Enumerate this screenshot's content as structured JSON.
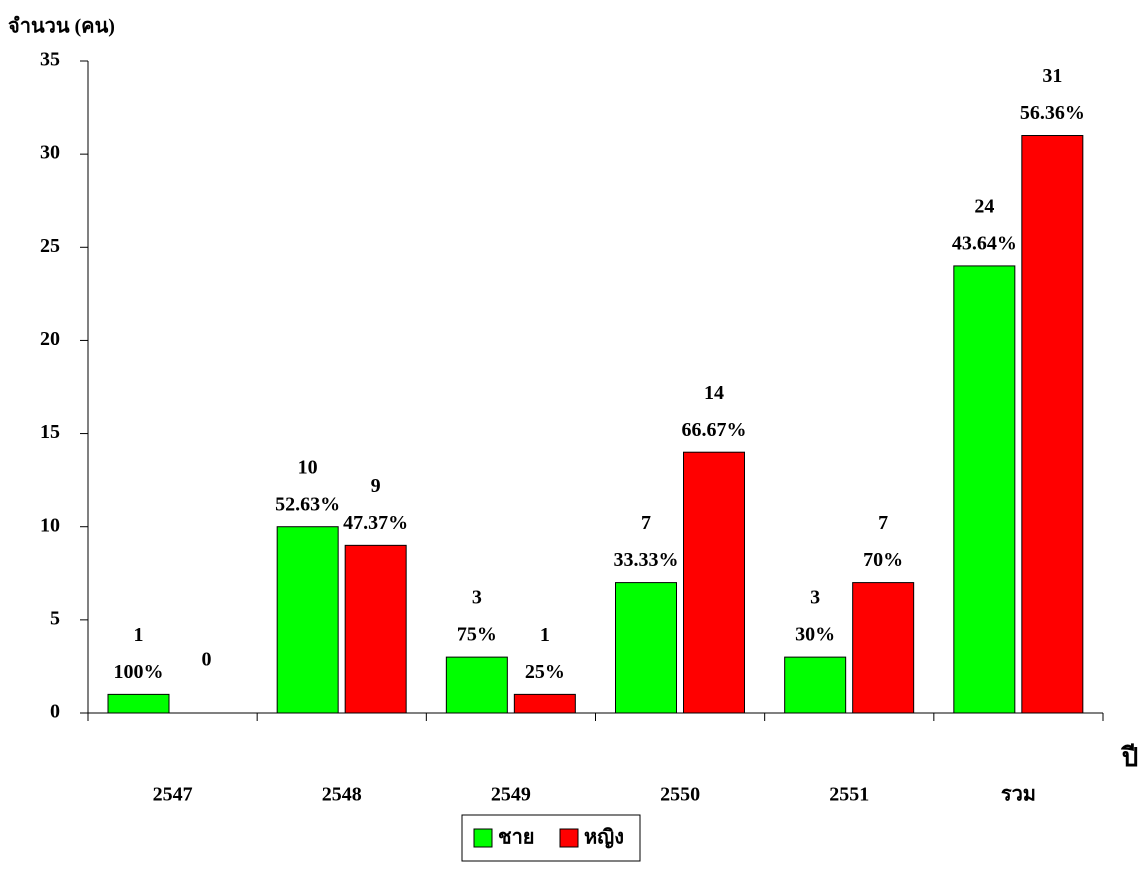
{
  "chart_data": {
    "type": "bar",
    "y_axis_label": "จำนวน (คน)",
    "x_axis_label": "ปี",
    "categories": [
      "2547",
      "2548",
      "2549",
      "2550",
      "2551",
      "รวม"
    ],
    "series": [
      {
        "name": "ชาย",
        "color": "#00ff00",
        "values": [
          1,
          10,
          3,
          7,
          3,
          24
        ],
        "percent_labels": [
          "100%",
          "52.63%",
          "75%",
          "33.33%",
          "30%",
          "43.64%"
        ]
      },
      {
        "name": "หญิง",
        "color": "#ff0000",
        "values": [
          0,
          9,
          1,
          14,
          7,
          31
        ],
        "percent_labels": [
          null,
          "47.37%",
          "25%",
          "66.67%",
          "70%",
          "56.36%"
        ]
      }
    ],
    "ylim": [
      0,
      35
    ],
    "yticks": [
      0,
      5,
      10,
      15,
      20,
      25,
      30,
      35
    ],
    "grid": false,
    "legend": "bottom"
  }
}
